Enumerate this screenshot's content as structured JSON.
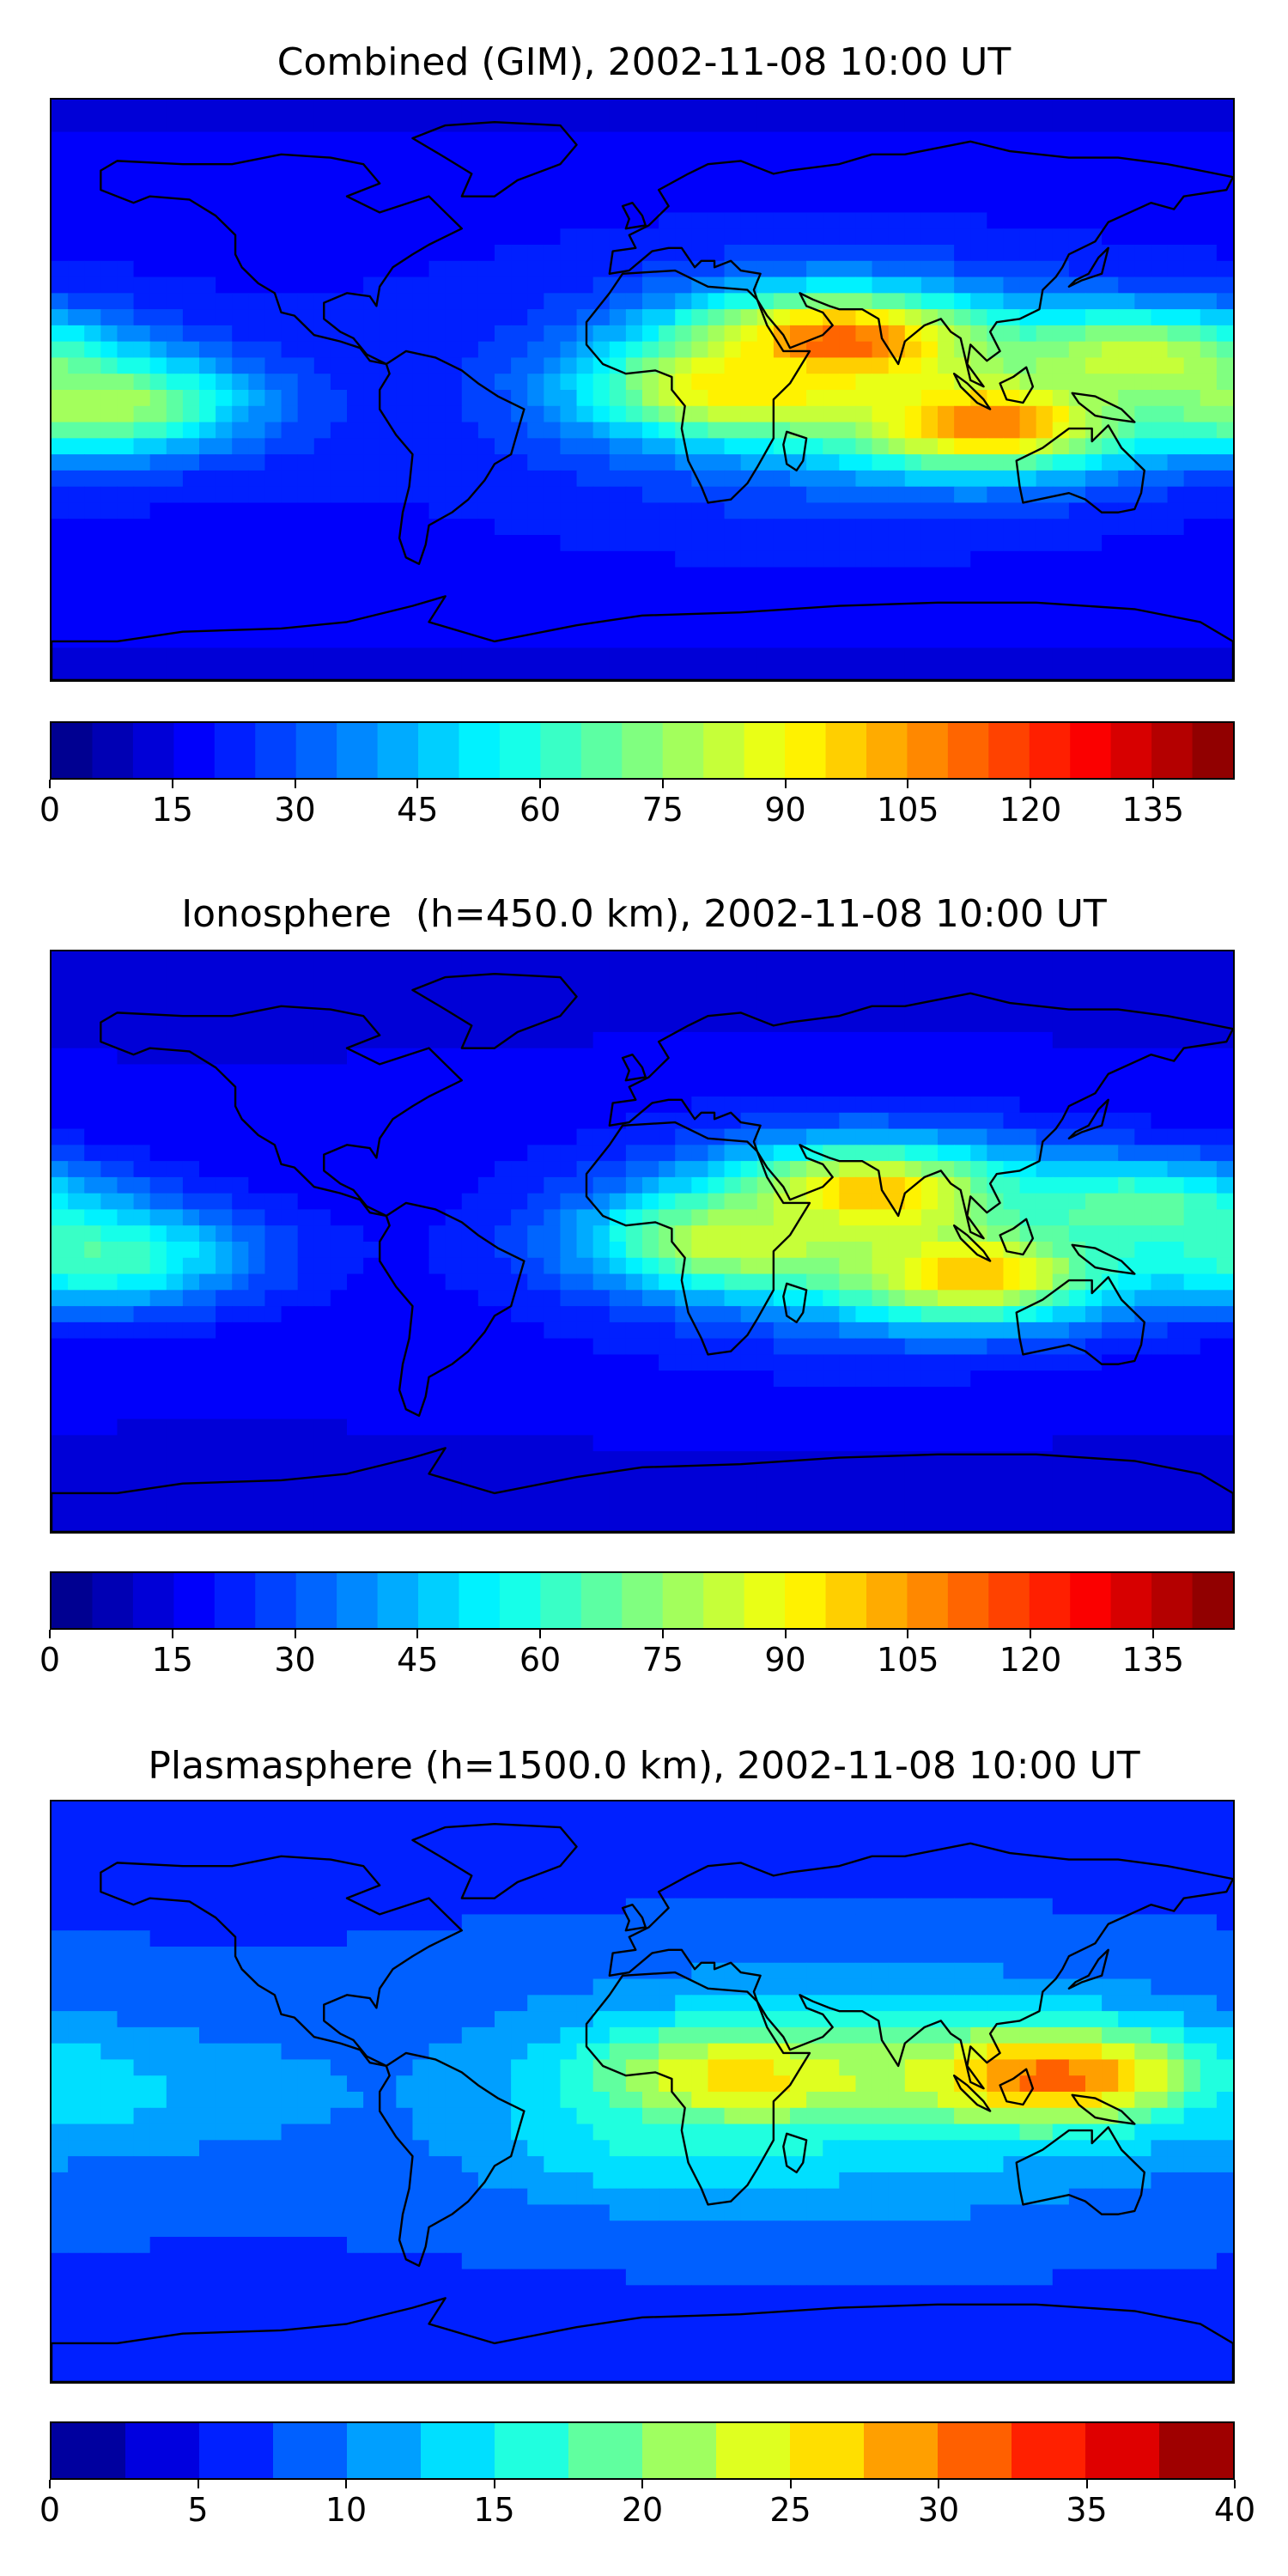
{
  "chart_data": [
    {
      "type": "heatmap",
      "title": "Combined (GIM), 2002-11-08 10:00 UT",
      "xlabel": "",
      "ylabel": "",
      "colormap": "jet",
      "colorbar": {
        "min": 0,
        "max": 145,
        "levels": 29,
        "ticks": [
          0,
          15,
          30,
          45,
          60,
          75,
          90,
          105,
          120,
          135
        ]
      },
      "features": [
        {
          "lon": 60,
          "lat": 15,
          "value": 115
        },
        {
          "lon": 105,
          "lat": -10,
          "value": 110
        },
        {
          "lon": 30,
          "lat": 0,
          "value": 95
        },
        {
          "lon": -165,
          "lat": -5,
          "value": 80
        },
        {
          "lon": 150,
          "lat": 10,
          "value": 85
        }
      ]
    },
    {
      "type": "heatmap",
      "title": "Ionosphere  (h=450.0 km), 2002-11-08 10:00 UT",
      "xlabel": "",
      "ylabel": "",
      "colormap": "jet",
      "colorbar": {
        "min": 0,
        "max": 145,
        "levels": 29,
        "ticks": [
          0,
          15,
          30,
          45,
          60,
          75,
          90,
          105,
          120,
          135
        ]
      },
      "features": [
        {
          "lon": 70,
          "lat": 15,
          "value": 100
        },
        {
          "lon": 100,
          "lat": -10,
          "value": 100
        },
        {
          "lon": 30,
          "lat": 0,
          "value": 85
        },
        {
          "lon": -165,
          "lat": -5,
          "value": 65
        },
        {
          "lon": 150,
          "lat": 10,
          "value": 70
        }
      ]
    },
    {
      "type": "heatmap",
      "title": "Plasmasphere (h=1500.0 km), 2002-11-08 10:00 UT",
      "xlabel": "",
      "ylabel": "",
      "colormap": "jet",
      "colorbar": {
        "min": 0,
        "max": 40,
        "levels": 16,
        "ticks": [
          0,
          5,
          10,
          15,
          20,
          25,
          30,
          35,
          40
        ]
      },
      "features": [
        {
          "lon": 30,
          "lat": 5,
          "value": 26
        },
        {
          "lon": 125,
          "lat": 5,
          "value": 31
        },
        {
          "lon": -175,
          "lat": 0,
          "value": 14
        },
        {
          "lon": -140,
          "lat": 0,
          "value": 12
        },
        {
          "lon": 10,
          "lat": -15,
          "value": 16
        }
      ]
    }
  ]
}
